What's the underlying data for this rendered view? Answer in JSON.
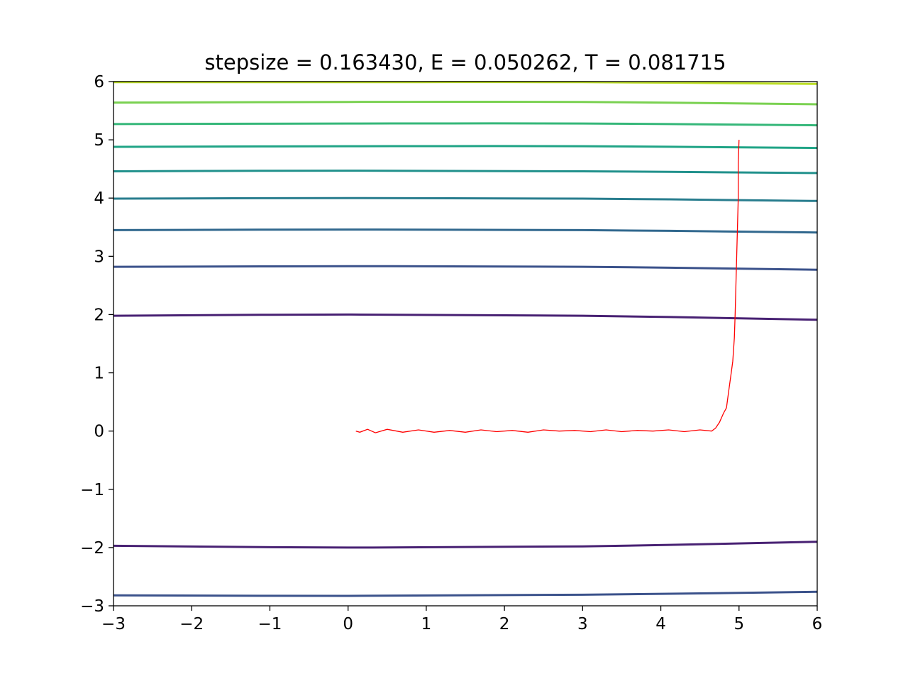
{
  "chart_data": {
    "type": "line",
    "title": "stepsize = 0.163430, E = 0.050262, T = 0.081715",
    "xlabel": "",
    "ylabel": "",
    "xlim": [
      -3,
      6
    ],
    "ylim": [
      -3,
      6
    ],
    "xticks": [
      -3,
      -2,
      -1,
      0,
      1,
      2,
      3,
      4,
      5,
      6
    ],
    "yticks": [
      -3,
      -2,
      -1,
      0,
      1,
      2,
      3,
      4,
      5,
      6
    ],
    "xtick_labels": [
      "−3",
      "−2",
      "−1",
      "0",
      "1",
      "2",
      "3",
      "4",
      "5",
      "6"
    ],
    "ytick_labels": [
      "−3",
      "−2",
      "−1",
      "0",
      "1",
      "2",
      "3",
      "4",
      "5",
      "6"
    ],
    "grid": false,
    "contours": [
      {
        "color": "#3b528b",
        "points": [
          [
            -3,
            -2.82
          ],
          [
            0,
            -2.83
          ],
          [
            3,
            -2.81
          ],
          [
            6,
            -2.76
          ]
        ]
      },
      {
        "color": "#482173",
        "points": [
          [
            -3,
            -1.97
          ],
          [
            0,
            -2.0
          ],
          [
            3,
            -1.98
          ],
          [
            6,
            -1.9
          ]
        ]
      },
      {
        "color": "#482173",
        "points": [
          [
            -3,
            1.98
          ],
          [
            0,
            2.0
          ],
          [
            3,
            1.98
          ],
          [
            6,
            1.91
          ]
        ]
      },
      {
        "color": "#3b528b",
        "points": [
          [
            -3,
            2.82
          ],
          [
            0,
            2.83
          ],
          [
            3,
            2.82
          ],
          [
            6,
            2.77
          ]
        ]
      },
      {
        "color": "#31688e",
        "points": [
          [
            -3,
            3.45
          ],
          [
            0,
            3.46
          ],
          [
            3,
            3.45
          ],
          [
            6,
            3.41
          ]
        ]
      },
      {
        "color": "#287d8e",
        "points": [
          [
            -3,
            3.99
          ],
          [
            0,
            4.0
          ],
          [
            3,
            3.99
          ],
          [
            6,
            3.95
          ]
        ]
      },
      {
        "color": "#21918c",
        "points": [
          [
            -3,
            4.46
          ],
          [
            0,
            4.47
          ],
          [
            3,
            4.46
          ],
          [
            6,
            4.43
          ]
        ]
      },
      {
        "color": "#20a486",
        "points": [
          [
            -3,
            4.88
          ],
          [
            0,
            4.89
          ],
          [
            3,
            4.89
          ],
          [
            6,
            4.86
          ]
        ]
      },
      {
        "color": "#35b779",
        "points": [
          [
            -3,
            5.27
          ],
          [
            0,
            5.28
          ],
          [
            3,
            5.28
          ],
          [
            6,
            5.25
          ]
        ]
      },
      {
        "color": "#7ad151",
        "points": [
          [
            -3,
            5.64
          ],
          [
            0,
            5.65
          ],
          [
            3,
            5.65
          ],
          [
            6,
            5.61
          ]
        ]
      },
      {
        "color": "#bddf26",
        "points": [
          [
            -3,
            5.99
          ],
          [
            0,
            5.99
          ],
          [
            3,
            5.99
          ],
          [
            6,
            5.96
          ]
        ]
      }
    ],
    "trajectory": {
      "color": "#ff0000",
      "points": [
        [
          5.0,
          5.0
        ],
        [
          4.99,
          4.6
        ],
        [
          4.99,
          4.0
        ],
        [
          4.98,
          3.5
        ],
        [
          4.97,
          3.0
        ],
        [
          4.96,
          2.5
        ],
        [
          4.95,
          2.0
        ],
        [
          4.94,
          1.6
        ],
        [
          4.92,
          1.2
        ],
        [
          4.9,
          1.0
        ],
        [
          4.87,
          0.7
        ],
        [
          4.84,
          0.4
        ],
        [
          4.8,
          0.3
        ],
        [
          4.75,
          0.15
        ],
        [
          4.7,
          0.05
        ],
        [
          4.65,
          0.0
        ],
        [
          4.5,
          0.02
        ],
        [
          4.3,
          -0.01
        ],
        [
          4.1,
          0.02
        ],
        [
          3.9,
          0.0
        ],
        [
          3.7,
          0.01
        ],
        [
          3.5,
          -0.01
        ],
        [
          3.3,
          0.02
        ],
        [
          3.1,
          -0.01
        ],
        [
          2.9,
          0.01
        ],
        [
          2.7,
          0.0
        ],
        [
          2.5,
          0.02
        ],
        [
          2.3,
          -0.02
        ],
        [
          2.1,
          0.01
        ],
        [
          1.9,
          -0.01
        ],
        [
          1.7,
          0.02
        ],
        [
          1.5,
          -0.02
        ],
        [
          1.3,
          0.01
        ],
        [
          1.1,
          -0.02
        ],
        [
          0.9,
          0.02
        ],
        [
          0.7,
          -0.02
        ],
        [
          0.5,
          0.03
        ],
        [
          0.35,
          -0.03
        ],
        [
          0.25,
          0.03
        ],
        [
          0.15,
          -0.02
        ],
        [
          0.1,
          0.0
        ]
      ]
    }
  }
}
